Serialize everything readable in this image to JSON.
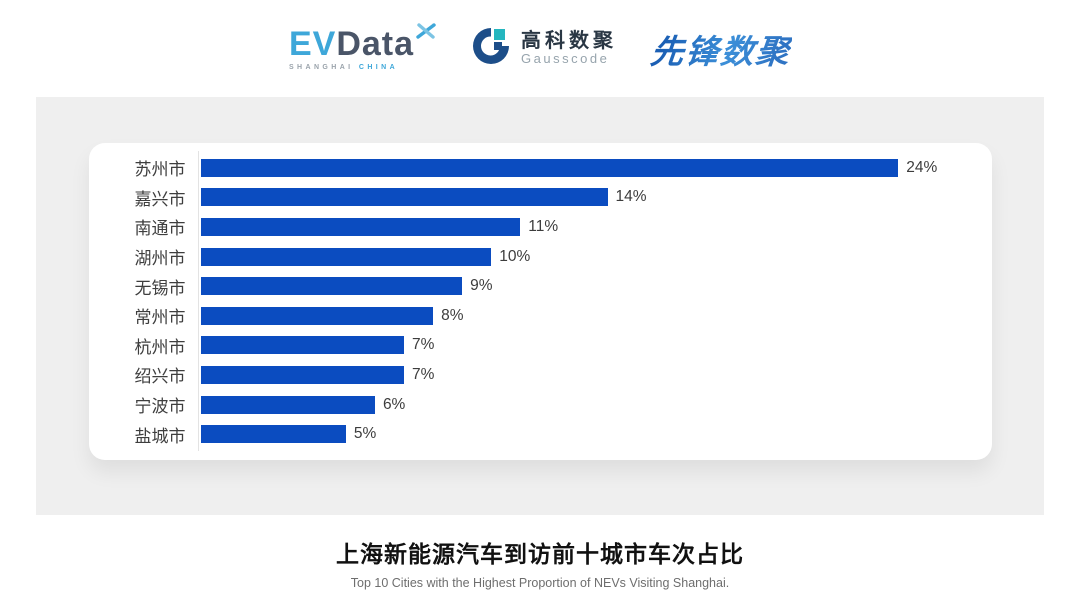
{
  "header": {
    "evdata_logo": {
      "ev": "EV",
      "data": "Data",
      "sub_left": "SHANGHAI",
      "sub_right": "CHINA"
    },
    "gausscode_logo": {
      "cn": "高科数聚",
      "en": "Gausscode"
    },
    "pioneer_logo": {
      "text": "先锋数聚"
    },
    "icons": {
      "evdata_mark": "x-star-icon",
      "gausscode_mark": "g-ring-icon"
    }
  },
  "chart_data": {
    "type": "bar",
    "orientation": "horizontal",
    "categories": [
      "苏州市",
      "嘉兴市",
      "南通市",
      "湖州市",
      "无锡市",
      "常州市",
      "杭州市",
      "绍兴市",
      "宁波市",
      "盐城市"
    ],
    "values": [
      24,
      14,
      11,
      10,
      9,
      8,
      7,
      7,
      6,
      5
    ],
    "value_labels": [
      "24%",
      "14%",
      "11%",
      "10%",
      "9%",
      "8%",
      "7%",
      "7%",
      "6%",
      "5%"
    ],
    "unit": "%",
    "xlim": [
      0,
      24
    ],
    "grid": false,
    "legend": "none",
    "bar_color": "#0b4cc0",
    "axis_line_color": "#e3e3e3",
    "title": "上海新能源汽车到访前十城市车次占比",
    "subtitle": "Top 10 Cities with the Highest Proportion of  NEVs Visiting Shanghai."
  },
  "colors": {
    "panel_bg": "#efefef",
    "card_bg": "#ffffff",
    "label_text": "#3e3e3e",
    "evdata_blue": "#3ea7d9",
    "evdata_dark": "#4a5568",
    "pioneer_blue": "#2b74c4"
  }
}
